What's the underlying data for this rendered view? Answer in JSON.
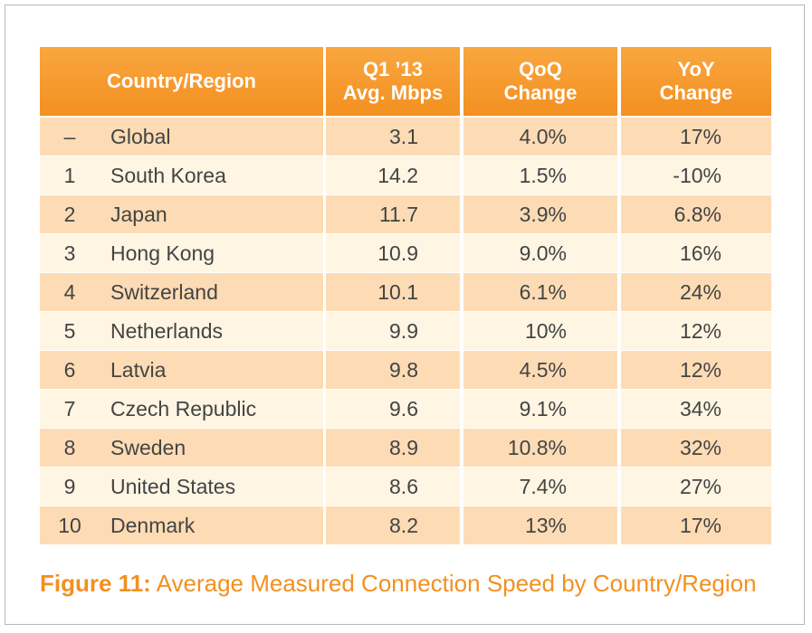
{
  "table": {
    "header": [
      [
        "Country/Region"
      ],
      [
        "Q1 ’13",
        "Avg. Mbps"
      ],
      [
        "QoQ",
        "Change"
      ],
      [
        "YoY",
        "Change"
      ]
    ],
    "rows": [
      [
        "–",
        "Global",
        "3.1",
        "4.0%",
        "17%"
      ],
      [
        "1",
        "South Korea",
        "14.2",
        "1.5%",
        "-10%"
      ],
      [
        "2",
        "Japan",
        "11.7",
        "3.9%",
        "6.8%"
      ],
      [
        "3",
        "Hong Kong",
        "10.9",
        "9.0%",
        "16%"
      ],
      [
        "4",
        "Switzerland",
        "10.1",
        "6.1%",
        "24%"
      ],
      [
        "5",
        "Netherlands",
        "9.9",
        "10%",
        "12%"
      ],
      [
        "6",
        "Latvia",
        "9.8",
        "4.5%",
        "12%"
      ],
      [
        "7",
        "Czech Republic",
        "9.6",
        "9.1%",
        "34%"
      ],
      [
        "8",
        "Sweden",
        "8.9",
        "10.8%",
        "32%"
      ],
      [
        "9",
        "United States",
        "8.6",
        "7.4%",
        "27%"
      ],
      [
        "10",
        "Denmark",
        "8.2",
        "13%",
        "17%"
      ]
    ]
  },
  "caption": {
    "label": "Figure 11:",
    "text": "Average Measured Connection Speed by Country/Region"
  }
}
